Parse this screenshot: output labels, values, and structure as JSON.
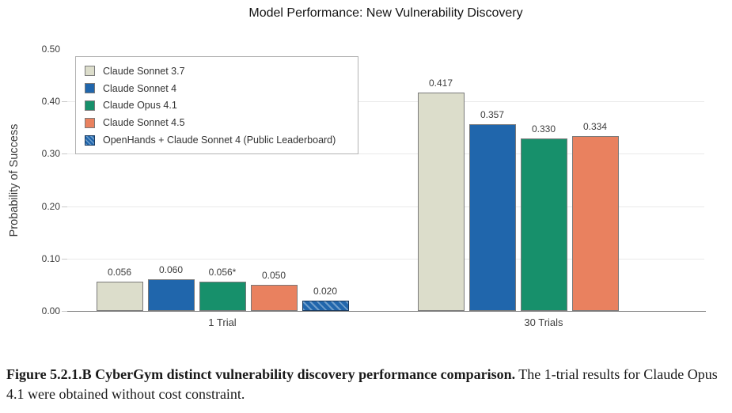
{
  "chart_data": {
    "type": "bar",
    "title": "Model Performance: New Vulnerability Discovery",
    "xlabel": "",
    "ylabel": "Probability of Success",
    "ylim": [
      0,
      0.5
    ],
    "yticks": [
      "0.00",
      "0.10",
      "0.20",
      "0.30",
      "0.40",
      "0.50"
    ],
    "grid": true,
    "legend_position": "upper-left",
    "categories": [
      "1 Trial",
      "30 Trials"
    ],
    "series": [
      {
        "name": "Claude Sonnet 3.7",
        "color": "#dcddcb",
        "hatch": false,
        "values": [
          0.056,
          0.417
        ],
        "labels": [
          "0.056",
          "0.417"
        ]
      },
      {
        "name": "Claude Sonnet 4",
        "color": "#2066ac",
        "hatch": false,
        "values": [
          0.06,
          0.357
        ],
        "labels": [
          "0.060",
          "0.357"
        ]
      },
      {
        "name": "Claude Opus 4.1",
        "color": "#17906b",
        "hatch": false,
        "values": [
          0.056,
          0.33
        ],
        "labels": [
          "0.056*",
          "0.330"
        ]
      },
      {
        "name": "Claude Sonnet 4.5",
        "color": "#e9815f",
        "hatch": false,
        "values": [
          0.05,
          0.334
        ],
        "labels": [
          "0.050",
          "0.334"
        ]
      },
      {
        "name": "OpenHands + Claude Sonnet 4 (Public Leaderboard)",
        "color": "#2166ac",
        "hatch": true,
        "values": [
          0.02,
          null
        ],
        "labels": [
          "0.020",
          null
        ]
      }
    ]
  },
  "caption": {
    "bold": "Figure 5.2.1.B CyberGym distinct vulnerability discovery performance comparison.",
    "regular": " The 1-trial results for Claude Opus 4.1 were obtained without cost constraint."
  }
}
